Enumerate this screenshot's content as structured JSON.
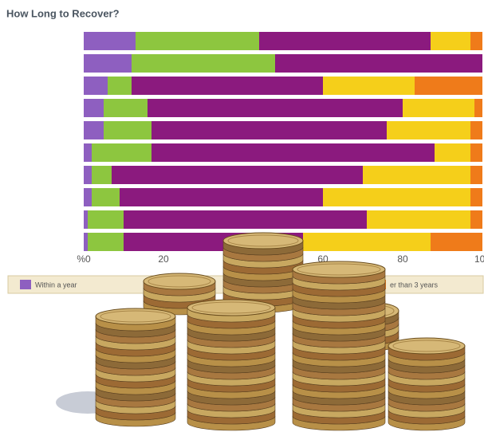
{
  "chart_data": {
    "type": "stacked-barh",
    "title": "How Long to Recover?",
    "categories": [
      null,
      null,
      null,
      null,
      null,
      null,
      null,
      null,
      null,
      null
    ],
    "series": [
      {
        "name": "Within a year",
        "color": "#8e5fc0",
        "values": [
          13,
          12,
          6,
          5,
          5,
          2,
          2,
          2,
          1,
          1
        ]
      },
      {
        "color": "#8dc63f",
        "values": [
          31,
          36,
          6,
          11,
          12,
          15,
          5,
          7,
          9,
          9
        ]
      },
      {
        "color": "#8b1a7e",
        "values": [
          43,
          52,
          48,
          64,
          59,
          71,
          63,
          51,
          61,
          45
        ]
      },
      {
        "color": "#f5cf1a",
        "values": [
          10,
          0,
          23,
          18,
          21,
          9,
          27,
          37,
          26,
          32
        ]
      },
      {
        "name": "er than 3 years",
        "color": "#ef7b1a",
        "values": [
          3,
          0,
          17,
          2,
          3,
          3,
          3,
          3,
          3,
          13
        ]
      }
    ],
    "xlim": [
      0,
      100
    ],
    "xticks": [
      {
        "value": 0,
        "label": "%0"
      },
      20,
      40,
      60,
      80,
      100
    ]
  }
}
